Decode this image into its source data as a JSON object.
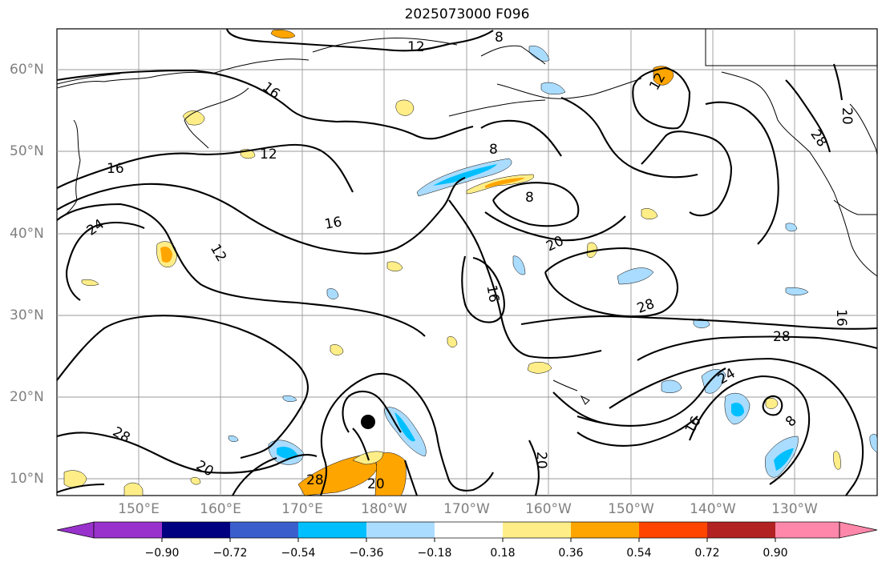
{
  "title": "2025073000 F096",
  "lat_labels": [
    "60°N",
    "50°N",
    "40°N",
    "30°N",
    "20°N",
    "10°N"
  ],
  "lon_labels": [
    "150°E",
    "160°E",
    "170°E",
    "180°W",
    "170°W",
    "160°W",
    "150°W",
    "140°W",
    "130°W"
  ],
  "contour_labels": [
    "12",
    "8",
    "16",
    "16",
    "20",
    "12",
    "8",
    "12",
    "28",
    "24",
    "12",
    "16",
    "8",
    "20",
    "16",
    "28",
    "28",
    "16",
    "24",
    "28",
    "20",
    "28",
    "20",
    "20",
    "16",
    "8"
  ],
  "colorbar": {
    "ticks": [
      "−0.90",
      "−0.72",
      "−0.54",
      "−0.36",
      "−0.18",
      "0.18",
      "0.36",
      "0.54",
      "0.72",
      "0.90"
    ],
    "colors": [
      "#9932cc",
      "#000080",
      "#3a5fcd",
      "#00bfff",
      "#aadcff",
      "#ffffff",
      "#ffee88",
      "#ffa500",
      "#ff4500",
      "#b22222",
      "#ff88aa"
    ]
  },
  "marker": {
    "name": "storm-center",
    "lat": 17,
    "lon": 178
  }
}
